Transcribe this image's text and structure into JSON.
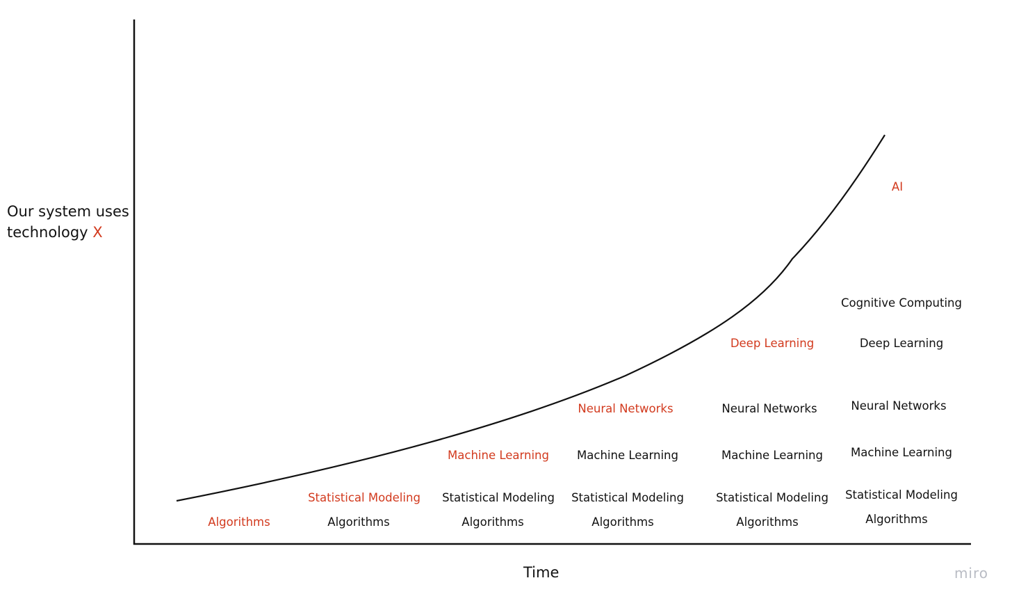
{
  "y_axis_label": {
    "line1": "Our system uses",
    "line2": "technology",
    "highlight": "X"
  },
  "x_axis_label": "Time",
  "watermark": "miro",
  "colors": {
    "highlight": "#d23a1e",
    "text": "#111111",
    "axis": "#111111",
    "watermark": "#b9bcc4"
  },
  "stages": [
    {
      "highlight": "Algorithms",
      "stack": []
    },
    {
      "highlight": "Statistical Modeling",
      "stack": [
        "Algorithms"
      ]
    },
    {
      "highlight": "Machine Learning",
      "stack": [
        "Statistical Modeling",
        "Algorithms"
      ]
    },
    {
      "highlight": "Neural Networks",
      "stack": [
        "Machine Learning",
        "Statistical Modeling",
        "Algorithms"
      ]
    },
    {
      "highlight": "Deep Learning",
      "stack": [
        "Neural Networks",
        "Machine Learning",
        "Statistical Modeling",
        "Algorithms"
      ]
    },
    {
      "highlight": "AI",
      "stack": [
        "Cognitive Computing",
        "Deep Learning",
        "Neural Networks",
        "Machine Learning",
        "Statistical Modeling",
        "Algorithms"
      ]
    }
  ]
}
